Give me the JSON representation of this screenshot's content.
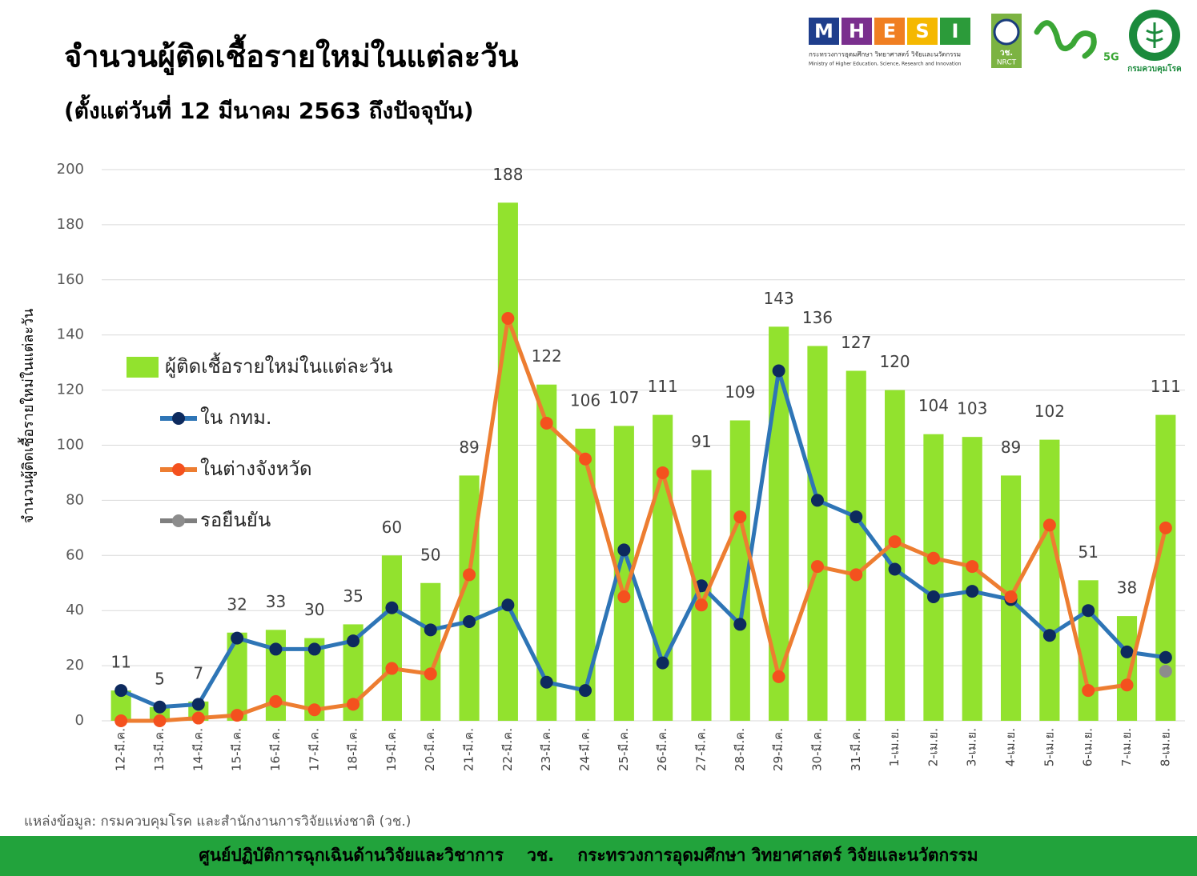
{
  "chart_data": {
    "type": "bar",
    "title": "จำนวนผู้ติดเชื้อรายใหม่ในแต่ละวัน",
    "subtitle": "(ตั้งแต่วันที่ 12 มีนาคม 2563 ถึงปัจจุบัน)",
    "y_label": "จำนวนผู้ติดเชื้อรายใหม่ในแต่ละวัน",
    "categories": [
      "12-มี.ค.",
      "13-มี.ค.",
      "14-มี.ค.",
      "15-มี.ค.",
      "16-มี.ค.",
      "17-มี.ค.",
      "18-มี.ค.",
      "19-มี.ค.",
      "20-มี.ค.",
      "21-มี.ค.",
      "22-มี.ค.",
      "23-มี.ค.",
      "24-มี.ค.",
      "25-มี.ค.",
      "26-มี.ค.",
      "27-มี.ค.",
      "28-มี.ค.",
      "29-มี.ค.",
      "30-มี.ค.",
      "31-มี.ค.",
      "1-เม.ย.",
      "2-เม.ย.",
      "3-เม.ย.",
      "4-เม.ย.",
      "5-เม.ย.",
      "6-เม.ย.",
      "7-เม.ย.",
      "8-เม.ย."
    ],
    "series": [
      {
        "name": "ผู้ติดเชื้อรายใหม่ในแต่ละวัน",
        "type": "bar",
        "color": "#92e22e",
        "data_labels": true,
        "values": [
          11,
          5,
          7,
          32,
          33,
          30,
          35,
          60,
          50,
          89,
          188,
          122,
          106,
          107,
          111,
          91,
          109,
          143,
          136,
          127,
          120,
          104,
          103,
          89,
          102,
          51,
          38,
          111
        ]
      },
      {
        "name": "ใน กทม.",
        "type": "line",
        "color": "#2e75b6",
        "marker_color": "#0d2a5e",
        "values": [
          11,
          5,
          6,
          30,
          26,
          26,
          29,
          41,
          33,
          36,
          42,
          14,
          11,
          62,
          21,
          49,
          35,
          127,
          80,
          74,
          55,
          45,
          47,
          44,
          31,
          40,
          25,
          23
        ]
      },
      {
        "name": "ในต่างจังหวัด",
        "type": "line",
        "color": "#ed7d31",
        "marker_color": "#f4511e",
        "values": [
          0,
          0,
          1,
          2,
          7,
          4,
          6,
          19,
          17,
          53,
          146,
          108,
          95,
          45,
          90,
          42,
          74,
          16,
          56,
          53,
          65,
          59,
          56,
          45,
          71,
          11,
          13,
          70
        ]
      },
      {
        "name": "รอยืนยัน",
        "type": "line",
        "color": "#7f7f7f",
        "marker_color": "#8c8c8c",
        "values": [
          null,
          null,
          null,
          null,
          null,
          null,
          null,
          null,
          null,
          null,
          null,
          null,
          null,
          null,
          null,
          null,
          null,
          null,
          null,
          null,
          null,
          null,
          null,
          null,
          null,
          null,
          null,
          18
        ]
      }
    ],
    "ylim": [
      0,
      200
    ],
    "yticks": [
      0,
      20,
      40,
      60,
      80,
      100,
      120,
      140,
      160,
      180,
      200
    ],
    "grid": true,
    "legend": "left"
  },
  "source": "แหล่งข้อมูล: กรมควบคุมโรค และสำนักงานการวิจัยแห่งชาติ (วช.)",
  "footer": "ศูนย์ปฏิบัติการฉุกเฉินด้านวิจัยและวิชาการ    วช.    กระทรวงการอุดมศึกษา วิทยาศาสตร์ วิจัยและนวัตกรรม",
  "logos": {
    "mhesi_letters": [
      "M",
      "H",
      "E",
      "S",
      "I"
    ],
    "mhesi_thai": "กระทรวงการอุดมศึกษา วิทยาศาสตร์ วิจัยและนวัตกรรม",
    "mhesi_english": "Ministry of Higher Education, Science, Research and Innovation",
    "nrct_thai": "วช.",
    "nrct_english": "NRCT",
    "fiveg": "5G",
    "ddc": "กรมควบคุมโรค"
  }
}
